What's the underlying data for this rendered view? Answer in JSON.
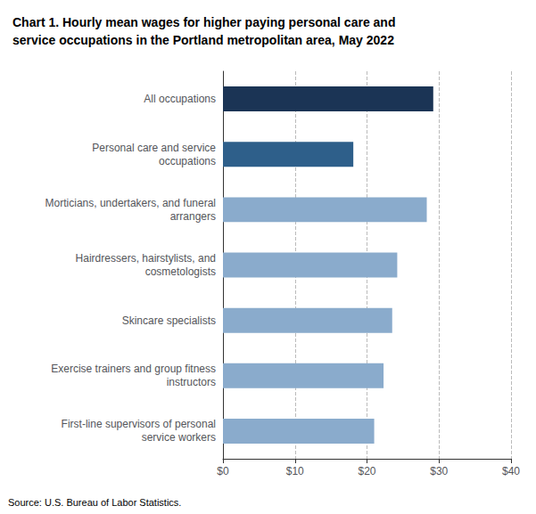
{
  "chart_data": {
    "type": "bar",
    "orientation": "horizontal",
    "title": "Chart 1. Hourly mean wages for higher paying personal care and\nservice occupations in the Portland metropolitan area, May 2022",
    "categories": [
      "First-line supervisors of personal\nservice workers",
      "Exercise trainers and group fitness\ninstructors",
      "Skincare specialists",
      "Hairdressers, hairstylists, and\ncosmetologists",
      "Morticians, undertakers, and funeral\narrangers",
      "Personal care and service\noccupations",
      "All occupations"
    ],
    "values": [
      21.0,
      22.3,
      23.5,
      24.2,
      28.3,
      18.1,
      29.2
    ],
    "colors": [
      "#8aabcc",
      "#8aabcc",
      "#8aabcc",
      "#8aabcc",
      "#8aabcc",
      "#2e5f8a",
      "#1b3455"
    ],
    "xlim": [
      0,
      40
    ],
    "xticks": [
      {
        "value": 0,
        "label": "$0"
      },
      {
        "value": 10,
        "label": "$10"
      },
      {
        "value": 20,
        "label": "$20"
      },
      {
        "value": 30,
        "label": "$30"
      },
      {
        "value": 40,
        "label": "$40"
      }
    ],
    "grid": true,
    "annotations": [
      "Source: U.S. Bureau of Labor Statistics."
    ]
  }
}
